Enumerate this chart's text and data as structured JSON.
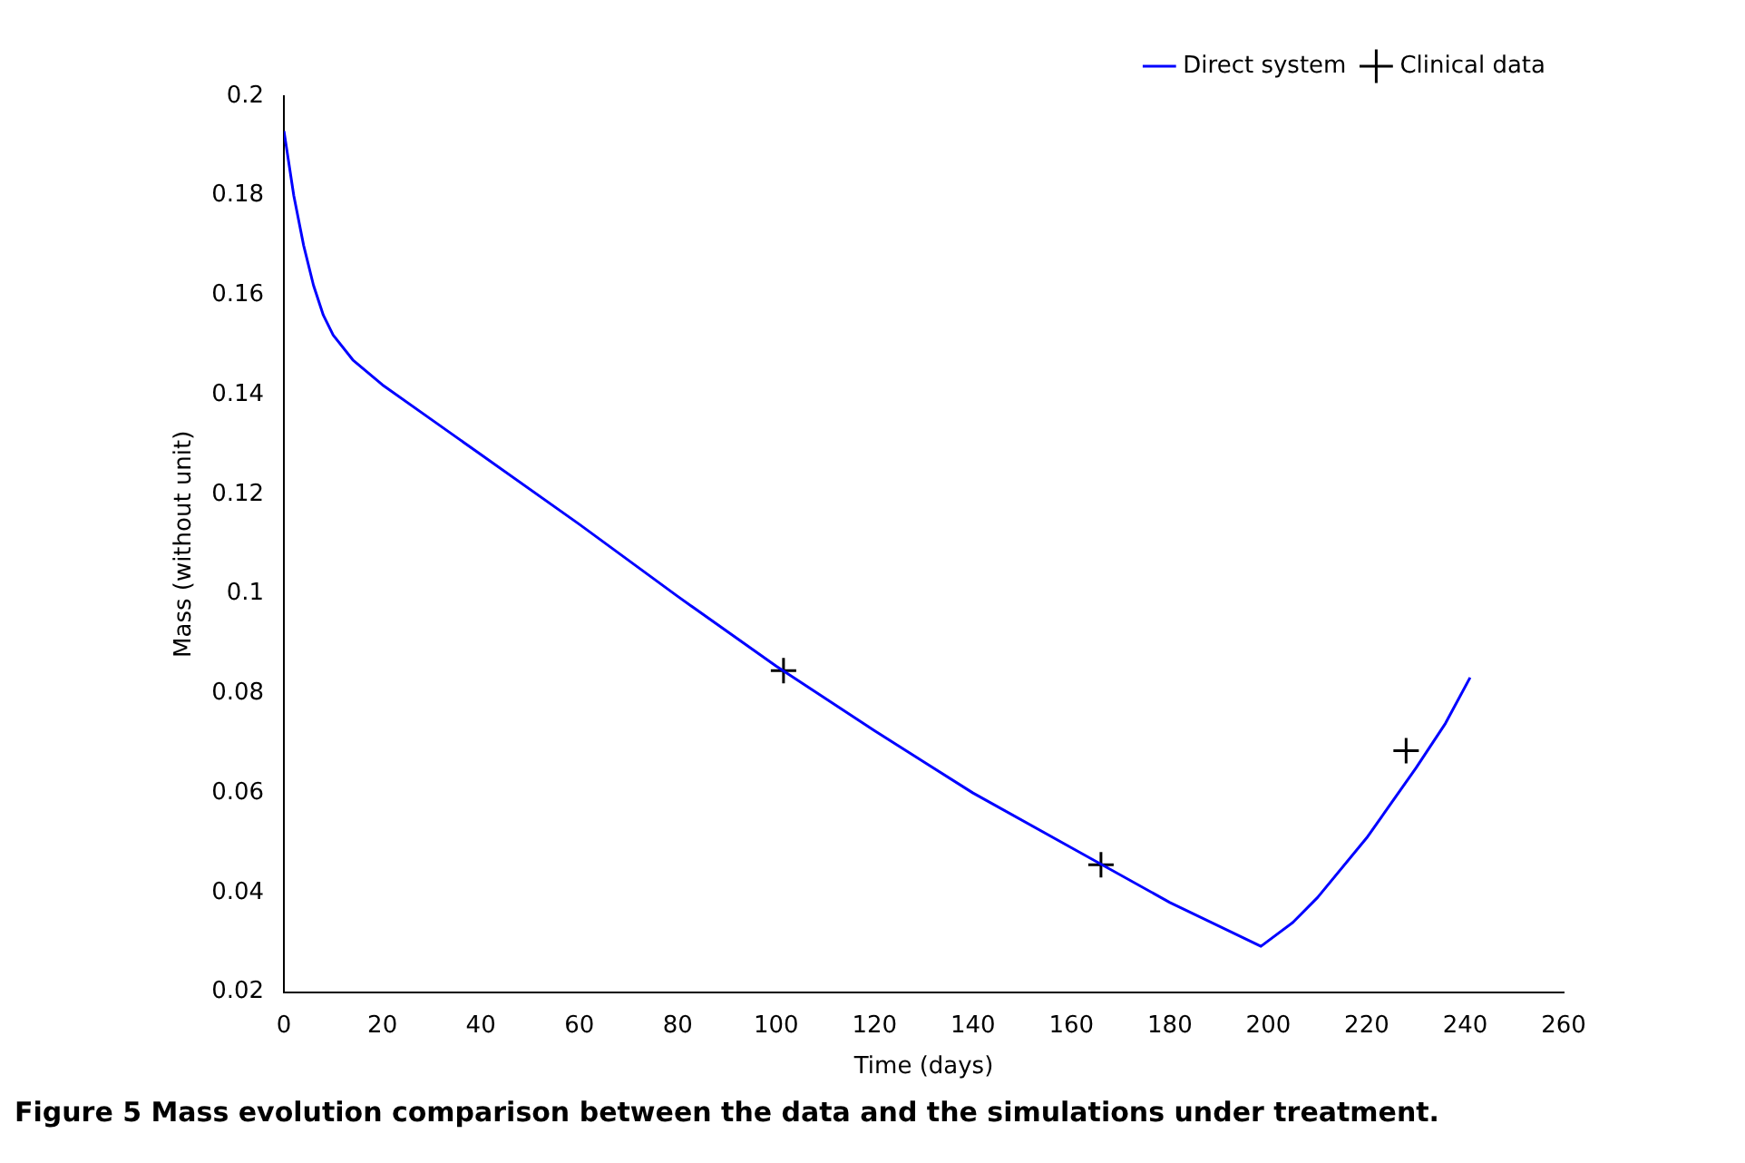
{
  "chart_data": {
    "type": "line",
    "xlabel": "Time (days)",
    "ylabel": "Mass (without unit)",
    "xlim": [
      0,
      260
    ],
    "xticks": [
      0,
      20,
      40,
      60,
      80,
      100,
      120,
      140,
      160,
      180,
      200,
      220,
      240,
      260
    ],
    "ylim": [
      0.02,
      0.2
    ],
    "yticks": [
      0.02,
      0.04,
      0.06,
      0.08,
      0.1,
      0.12,
      0.14,
      0.16,
      0.18,
      0.2
    ],
    "grid": false,
    "legend": "top right",
    "annotations": [
      "Figure 5 Mass evolution comparison between the data and the simulations under treatment."
    ],
    "series": [
      {
        "name": "Direct system",
        "color": "#0000ff",
        "marker": "none",
        "x": [
          0,
          2,
          4,
          6,
          8,
          10,
          14,
          20,
          30,
          40,
          60,
          80,
          100,
          120,
          140,
          160,
          180,
          198.5,
          205,
          210,
          220,
          230,
          236,
          241
        ],
        "values": [
          0.193,
          0.18,
          0.17,
          0.162,
          0.156,
          0.152,
          0.147,
          0.142,
          0.135,
          0.128,
          0.114,
          0.0995,
          0.0855,
          0.0725,
          0.06,
          0.049,
          0.038,
          0.0292,
          0.034,
          0.039,
          0.051,
          0.065,
          0.074,
          0.0832
        ]
      },
      {
        "name": "Clinical data",
        "type": "scatter",
        "color": "#000000",
        "marker": "cross",
        "x": [
          101.5,
          166,
          228
        ],
        "values": [
          0.0846,
          0.0456,
          0.0685
        ]
      }
    ]
  }
}
